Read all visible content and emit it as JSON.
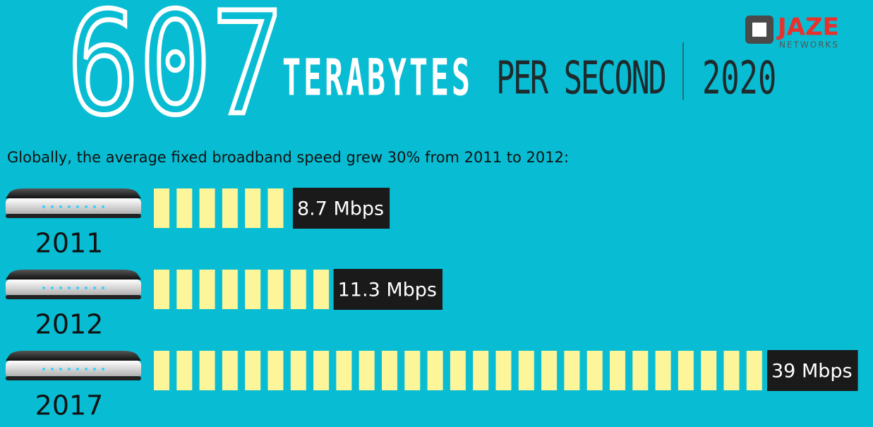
{
  "chart_data": {
    "type": "bar",
    "headline": {
      "number": "607",
      "unit": "TERABYTES",
      "per": "PER SECOND",
      "year": "2020"
    },
    "logo": {
      "name": "JAZE",
      "sub": "NETWORKS"
    },
    "title": "Globally, the average fixed broadband speed grew 30% from 2011 to 2012:",
    "categories": [
      "2011",
      "2012",
      "2017"
    ],
    "values": [
      8.7,
      11.3,
      39
    ],
    "value_labels": [
      "8.7 Mbps",
      "11.3 Mbps",
      "39 Mbps"
    ],
    "color": "#fdf59a",
    "label_background": "#1a1a1a"
  }
}
